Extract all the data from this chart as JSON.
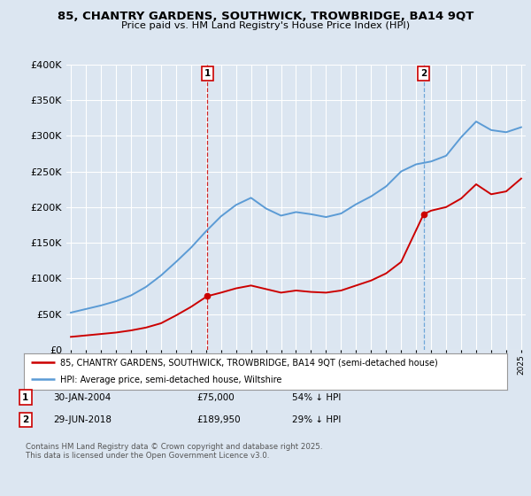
{
  "title": "85, CHANTRY GARDENS, SOUTHWICK, TROWBRIDGE, BA14 9QT",
  "subtitle": "Price paid vs. HM Land Registry's House Price Index (HPI)",
  "bg_color": "#dce6f1",
  "legend_line1": "85, CHANTRY GARDENS, SOUTHWICK, TROWBRIDGE, BA14 9QT (semi-detached house)",
  "legend_line2": "HPI: Average price, semi-detached house, Wiltshire",
  "red_color": "#cc0000",
  "blue_color": "#5b9bd5",
  "annotation1_date": "30-JAN-2004",
  "annotation1_price": "£75,000",
  "annotation1_hpi": "54% ↓ HPI",
  "annotation2_date": "29-JUN-2018",
  "annotation2_price": "£189,950",
  "annotation2_hpi": "29% ↓ HPI",
  "footer": "Contains HM Land Registry data © Crown copyright and database right 2025.\nThis data is licensed under the Open Government Licence v3.0.",
  "ylim": [
    0,
    400000
  ],
  "yticks": [
    0,
    50000,
    100000,
    150000,
    200000,
    250000,
    300000,
    350000,
    400000
  ],
  "hpi_x": [
    1995,
    1996,
    1997,
    1998,
    1999,
    2000,
    2001,
    2002,
    2003,
    2004,
    2005,
    2006,
    2007,
    2008,
    2009,
    2010,
    2011,
    2012,
    2013,
    2014,
    2015,
    2016,
    2017,
    2018,
    2019,
    2020,
    2021,
    2022,
    2023,
    2024,
    2025
  ],
  "hpi_y": [
    52000,
    57000,
    62000,
    68000,
    76000,
    88000,
    104000,
    123000,
    143000,
    166000,
    187000,
    203000,
    213000,
    198000,
    188000,
    193000,
    190000,
    186000,
    191000,
    204000,
    215000,
    229000,
    250000,
    260000,
    264000,
    272000,
    298000,
    320000,
    308000,
    305000,
    312000
  ],
  "red_x": [
    1995,
    1996,
    1997,
    1998,
    1999,
    2000,
    2001,
    2002,
    2003,
    2004.08,
    2005,
    2006,
    2007,
    2008,
    2009,
    2010,
    2011,
    2012,
    2013,
    2014,
    2015,
    2016,
    2017,
    2018.5,
    2019,
    2020,
    2021,
    2022,
    2023,
    2024,
    2025
  ],
  "red_y": [
    18000,
    20000,
    22000,
    24000,
    27000,
    31000,
    37000,
    48000,
    60000,
    75000,
    80000,
    86000,
    90000,
    85000,
    80000,
    83000,
    81000,
    80000,
    83000,
    90000,
    97000,
    107000,
    123000,
    189950,
    195000,
    200000,
    212000,
    232000,
    218000,
    222000,
    240000
  ],
  "marker1_x": 2004.08,
  "marker1_y": 75000,
  "marker2_x": 2018.5,
  "marker2_y": 189950,
  "vline1_x": 2004.08,
  "vline2_x": 2018.5,
  "xmin": 1995,
  "xmax": 2025
}
